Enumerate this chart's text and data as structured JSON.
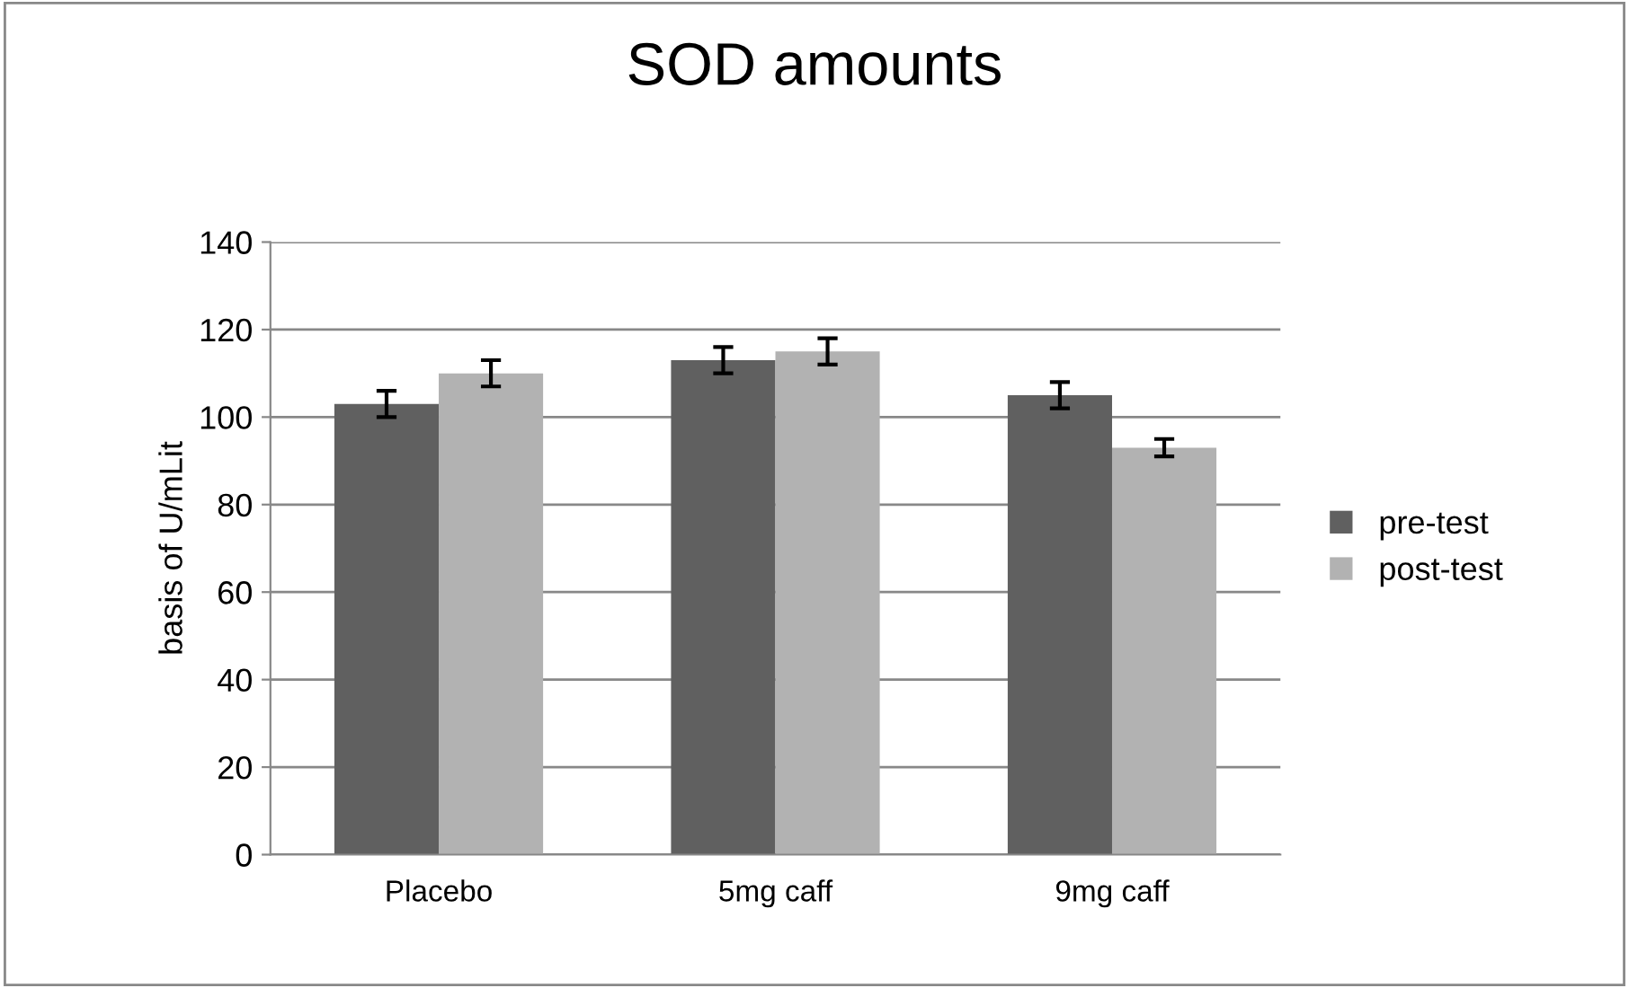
{
  "chart_data": {
    "type": "bar",
    "title": "SOD amounts",
    "ylabel": "basis of U/mLit",
    "categories": [
      "Placebo",
      "5mg caff",
      "9mg caff"
    ],
    "series": [
      {
        "name": "pre-test",
        "color": "#606060",
        "values": [
          103,
          113,
          105
        ],
        "errors": [
          3,
          3,
          3
        ]
      },
      {
        "name": "post-test",
        "color": "#b2b2b2",
        "values": [
          110,
          115,
          93
        ],
        "errors": [
          3,
          3,
          2
        ]
      }
    ],
    "ylim": [
      0,
      140
    ],
    "yticks": [
      0,
      20,
      40,
      60,
      80,
      100,
      120,
      140
    ],
    "grid": "y",
    "legend": "right"
  }
}
